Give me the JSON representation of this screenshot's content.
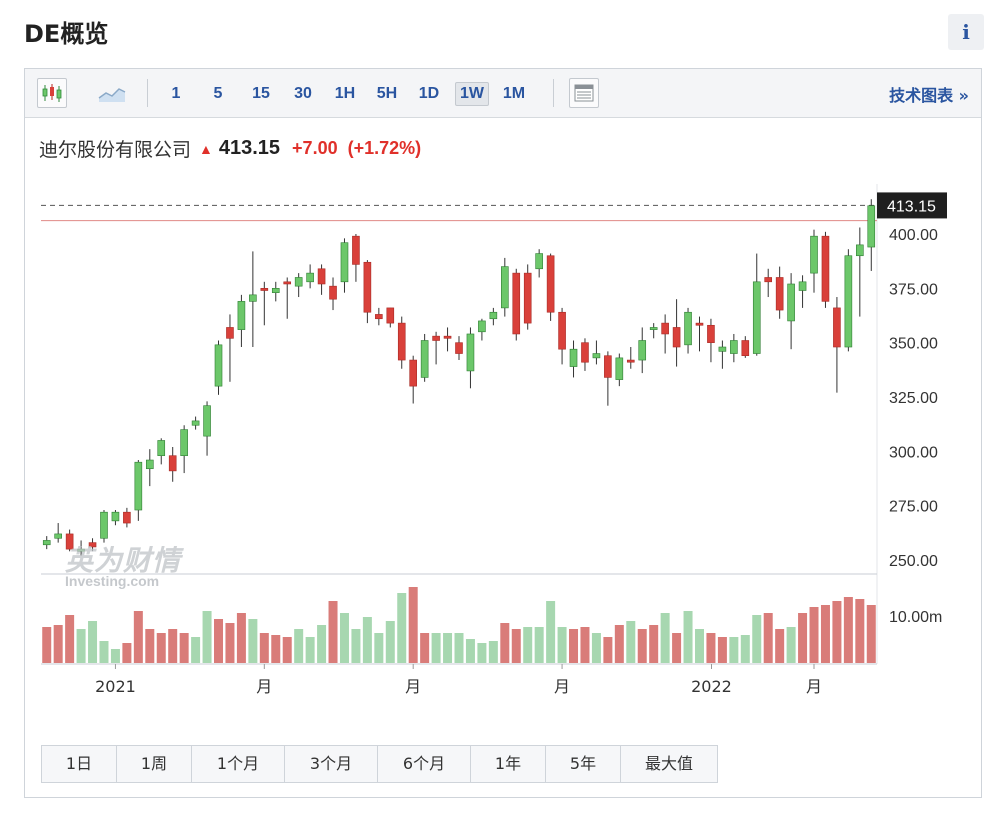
{
  "header": {
    "title": "DE概览",
    "info_label": "i"
  },
  "toolbar": {
    "intervals": [
      "1",
      "5",
      "15",
      "30",
      "1H",
      "5H",
      "1D",
      "1W",
      "1M"
    ],
    "active_interval": "1W",
    "tech_chart_label": "技术图表 »"
  },
  "quote": {
    "name": "迪尔股份有限公司",
    "price": "413.15",
    "change": "+7.00",
    "change_pct": "(+1.72%)"
  },
  "watermark": {
    "cn": "英为财情",
    "en": "Investing.com"
  },
  "ranges": [
    "1日",
    "1周",
    "1个月",
    "3个月",
    "6个月",
    "1年",
    "5年",
    "最大值"
  ],
  "colors": {
    "up": "#d9403a",
    "down": "#6cc76a",
    "vol_up": "#d97c79",
    "vol_down": "#a7d7b0",
    "link": "#2a55a0"
  },
  "chart_data": {
    "type": "candlestick",
    "price_axis": {
      "ticks": [
        "400.00",
        "375.00",
        "350.00",
        "325.00",
        "300.00",
        "275.00",
        "250.00"
      ],
      "range": [
        239,
        418
      ]
    },
    "volume_axis": {
      "ticks": [
        "10.00m"
      ]
    },
    "last_price_label": "413.15",
    "reference_line": 406.15,
    "x_labels": [
      "2021",
      "月",
      "月",
      "月",
      "2022",
      "月"
    ],
    "candles": [
      [
        257,
        259,
        255,
        261,
        "d"
      ],
      [
        260,
        262,
        258,
        267,
        "d"
      ],
      [
        262,
        255,
        254,
        264,
        "u"
      ],
      [
        255,
        254,
        252,
        259,
        "d"
      ],
      [
        258,
        256,
        254,
        260,
        "u"
      ],
      [
        260,
        272,
        258,
        273,
        "d"
      ],
      [
        268,
        272,
        266,
        273,
        "d"
      ],
      [
        272,
        267,
        265,
        274,
        "u"
      ],
      [
        273,
        295,
        268,
        296,
        "d"
      ],
      [
        292,
        296,
        284,
        301,
        "d"
      ],
      [
        298,
        305,
        294,
        306,
        "d"
      ],
      [
        298,
        291,
        286,
        302,
        "u"
      ],
      [
        298,
        310,
        290,
        312,
        "d"
      ],
      [
        312,
        314,
        310,
        316,
        "d"
      ],
      [
        307,
        321,
        298,
        323,
        "d"
      ],
      [
        330,
        349,
        326,
        351,
        "d"
      ],
      [
        352,
        357,
        332,
        363,
        "u"
      ],
      [
        356,
        369,
        348,
        372,
        "d"
      ],
      [
        369,
        372,
        348,
        392,
        "d"
      ],
      [
        374,
        375,
        358,
        378,
        "u"
      ],
      [
        373,
        375,
        369,
        378,
        "d"
      ],
      [
        378,
        377,
        361,
        380,
        "u"
      ],
      [
        376,
        380,
        371,
        382,
        "d"
      ],
      [
        378,
        382,
        375,
        386,
        "d"
      ],
      [
        384,
        377,
        372,
        386,
        "u"
      ],
      [
        370,
        376,
        365,
        380,
        "u"
      ],
      [
        378,
        396,
        373,
        398,
        "d"
      ],
      [
        399,
        386,
        378,
        400,
        "u"
      ],
      [
        387,
        364,
        359,
        388,
        "u"
      ],
      [
        363,
        361,
        358,
        366,
        "u"
      ],
      [
        366,
        359,
        357,
        366,
        "u"
      ],
      [
        359,
        342,
        338,
        362,
        "u"
      ],
      [
        330,
        342,
        322,
        344,
        "u"
      ],
      [
        334,
        351,
        332,
        354,
        "d"
      ],
      [
        353,
        351,
        340,
        355,
        "u"
      ],
      [
        353,
        352,
        346,
        357,
        "u"
      ],
      [
        345,
        350,
        342,
        353,
        "u"
      ],
      [
        337,
        354,
        329,
        357,
        "d"
      ],
      [
        355,
        360,
        351,
        361,
        "d"
      ],
      [
        361,
        364,
        358,
        366,
        "d"
      ],
      [
        366,
        385,
        362,
        389,
        "d"
      ],
      [
        382,
        354,
        351,
        384,
        "u"
      ],
      [
        382,
        359,
        356,
        386,
        "u"
      ],
      [
        384,
        391,
        380,
        393,
        "d"
      ],
      [
        390,
        364,
        360,
        391,
        "u"
      ],
      [
        364,
        347,
        340,
        366,
        "u"
      ],
      [
        339,
        347,
        334,
        351,
        "d"
      ],
      [
        350,
        341,
        337,
        352,
        "u"
      ],
      [
        345,
        343,
        340,
        351,
        "d"
      ],
      [
        344,
        334,
        321,
        346,
        "u"
      ],
      [
        333,
        343,
        330,
        345,
        "d"
      ],
      [
        342,
        341,
        338,
        348,
        "u"
      ],
      [
        342,
        351,
        336,
        357,
        "d"
      ],
      [
        356,
        357,
        352,
        359,
        "d"
      ],
      [
        359,
        354,
        345,
        363,
        "u"
      ],
      [
        357,
        348,
        339,
        370,
        "u"
      ],
      [
        349,
        364,
        345,
        366,
        "d"
      ],
      [
        358,
        359,
        346,
        362,
        "u"
      ],
      [
        358,
        350,
        341,
        361,
        "u"
      ],
      [
        346,
        348,
        338,
        351,
        "d"
      ],
      [
        345,
        351,
        341,
        354,
        "d"
      ],
      [
        351,
        344,
        343,
        353,
        "u"
      ],
      [
        345,
        378,
        344,
        391,
        "d"
      ],
      [
        380,
        378,
        371,
        384,
        "u"
      ],
      [
        380,
        365,
        361,
        385,
        "u"
      ],
      [
        360,
        377,
        347,
        382,
        "d"
      ],
      [
        374,
        378,
        366,
        381,
        "d"
      ],
      [
        382,
        399,
        373,
        402,
        "d"
      ],
      [
        399,
        369,
        366,
        401,
        "u"
      ],
      [
        366,
        348,
        327,
        371,
        "u"
      ],
      [
        348,
        390,
        346,
        393,
        "d"
      ],
      [
        390,
        395,
        362,
        403,
        "d"
      ],
      [
        394,
        413,
        383,
        416,
        "d"
      ]
    ],
    "volumes": [
      36,
      38,
      48,
      34,
      42,
      22,
      14,
      20,
      52,
      34,
      30,
      34,
      30,
      26,
      52,
      44,
      40,
      50,
      44,
      30,
      28,
      26,
      34,
      26,
      38,
      62,
      50,
      34,
      46,
      30,
      42,
      70,
      76,
      30,
      30,
      30,
      30,
      24,
      20,
      22,
      40,
      34,
      36,
      36,
      62,
      36,
      34,
      36,
      30,
      26,
      38,
      42,
      34,
      38,
      50,
      30,
      52,
      34,
      30,
      26,
      26,
      28,
      48,
      50,
      34,
      36,
      50,
      56,
      58,
      62,
      66,
      64,
      58
    ],
    "volume_dir": "ddduuuudddddduuddduddduuuduuuuuudduuuuuudduuuudduddudduduudduuuddudddddd"
  }
}
